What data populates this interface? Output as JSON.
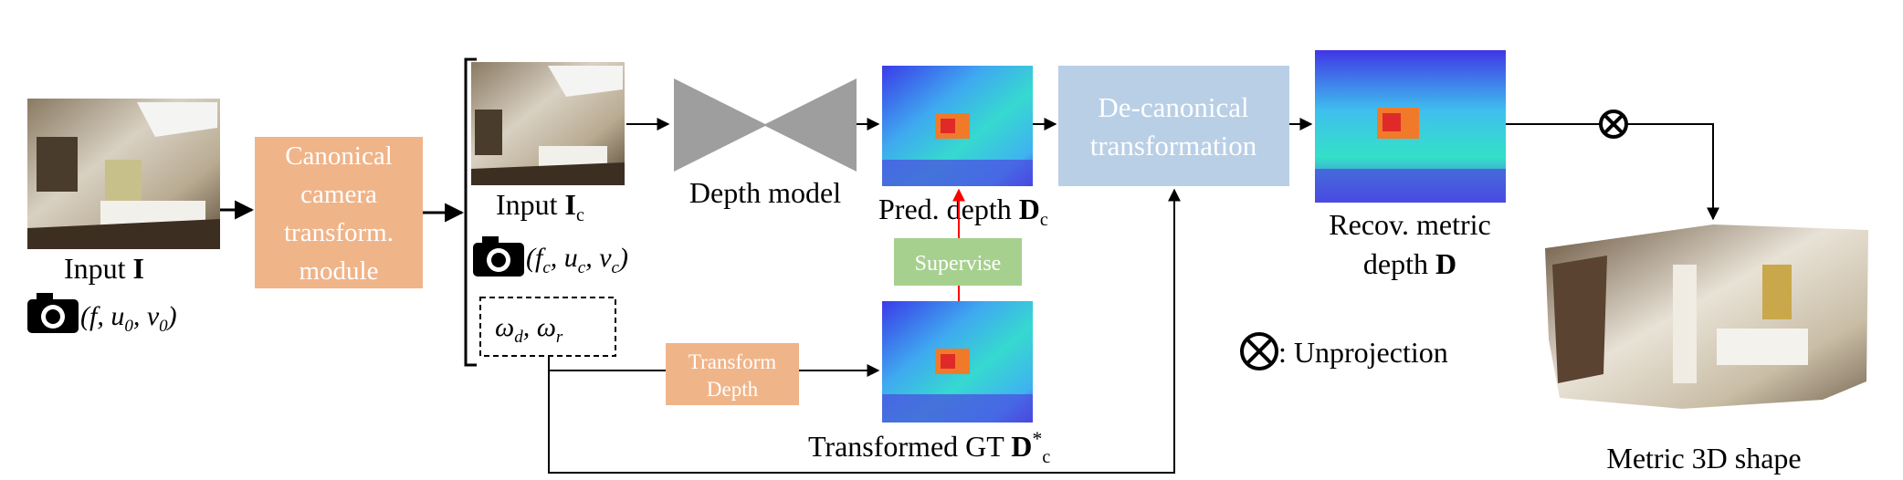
{
  "input": {
    "label": "Input ",
    "label_bold": "I",
    "camera_params": "(f, u",
    "camera_sub0": "0",
    "camera_sep": ", v",
    "camera_sub1": "0",
    "camera_close": ")"
  },
  "canonical_module": {
    "line1": "Canonical",
    "line2": "camera",
    "line3": "transform.",
    "line4": "module"
  },
  "input_canonical": {
    "label": "Input ",
    "label_bold": "I",
    "label_sub": "c",
    "params_open": "(f",
    "params_sub_f": "c",
    "params_u": ", u",
    "params_sub_u": "c",
    "params_v": ", v",
    "params_sub_v": "c",
    "params_close": ")"
  },
  "omega": {
    "w": "ω",
    "d": "d",
    "comma": ", ω",
    "r": "r"
  },
  "depth_model": {
    "label": "Depth model"
  },
  "pred_depth": {
    "label": "Pred. depth ",
    "bold": "D",
    "sub": "c"
  },
  "supervise": {
    "label": "Supervise"
  },
  "transform_depth": {
    "line1": "Transform",
    "line2": "Depth"
  },
  "transformed_gt": {
    "label": "Transformed GT ",
    "bold": "D",
    "star": "*",
    "sub": "c"
  },
  "decanonical": {
    "line1": "De-canonical",
    "line2": "transformation"
  },
  "recov": {
    "line1": "Recov. metric",
    "line2": "depth ",
    "bold": "D"
  },
  "unprojection": {
    "symbol": "⊗",
    "label": ": Unprojection"
  },
  "metric_shape": {
    "label": "Metric 3D shape"
  },
  "colors": {
    "canonical_box": "#f0b489",
    "decanonical_box": "#b9cfe6",
    "supervise_box": "#a6d08e",
    "transform_box": "#f0b489",
    "depth_model": "#9e9e9e",
    "red_arrow": "#ff0000"
  }
}
